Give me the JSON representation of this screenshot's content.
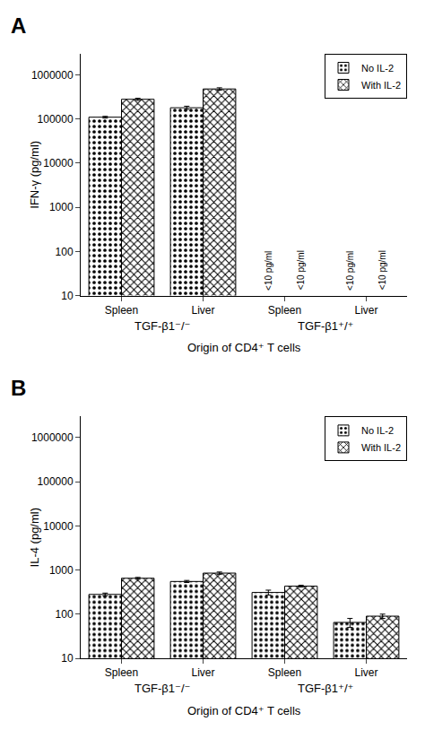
{
  "chart_data": [
    {
      "type": "bar",
      "title": "A",
      "ylabel": "IFN-γ (pg/ml)",
      "xlabel": "Origin of CD4⁺ T cells",
      "categories": [
        "Spleen",
        "Liver",
        "Spleen",
        "Liver"
      ],
      "groups": [
        "TGF-β1⁻/⁻",
        "TGF-β1⁻/⁻",
        "TGF-β1⁺/⁺",
        "TGF-β1⁺/⁺"
      ],
      "series": [
        {
          "name": "No IL-2",
          "color": "white",
          "values": [
            110000,
            180000,
            null,
            null
          ],
          "errors": [
            5000,
            15000,
            null,
            null
          ]
        },
        {
          "name": "With IL-2",
          "color": "#c0c0c0",
          "values": [
            280000,
            480000,
            null,
            null
          ],
          "errors": [
            15000,
            30000,
            null,
            null
          ]
        }
      ],
      "annotations": [
        {
          "text": "<10 pg/ml",
          "x": 2,
          "series": "No IL-2"
        },
        {
          "text": "<10 pg/ml",
          "x": 2,
          "series": "With IL-2"
        },
        {
          "text": "<10 pg/ml",
          "x": 3,
          "series": "No IL-2"
        },
        {
          "text": "<10 pg/ml",
          "x": 3,
          "series": "With IL-2"
        }
      ],
      "log": "y",
      "ylim": [
        10,
        3000000
      ],
      "yticks": [
        10,
        100,
        1000,
        10000,
        100000,
        1000000
      ],
      "grid": false,
      "legend": "upper right"
    },
    {
      "type": "bar",
      "title": "B",
      "ylabel": "IL-4 (pg/ml)",
      "xlabel": "Origin of CD4⁺ T cells",
      "categories": [
        "Spleen",
        "Liver",
        "Spleen",
        "Liver"
      ],
      "groups": [
        "TGF-β1⁻/⁻",
        "TGF-β1⁻/⁻",
        "TGF-β1⁺/⁺",
        "TGF-β1⁺/⁺"
      ],
      "series": [
        {
          "name": "No IL-2",
          "color": "white",
          "values": [
            280,
            550,
            310,
            65
          ],
          "errors": [
            20,
            30,
            40,
            15
          ]
        },
        {
          "name": "With IL-2",
          "color": "#c0c0c0",
          "values": [
            650,
            850,
            430,
            90
          ],
          "errors": [
            30,
            50,
            20,
            10
          ]
        }
      ],
      "log": "y",
      "ylim": [
        10,
        3000000
      ],
      "yticks": [
        10,
        100,
        1000,
        10000,
        100000,
        1000000
      ],
      "grid": false,
      "legend": "upper right"
    }
  ]
}
